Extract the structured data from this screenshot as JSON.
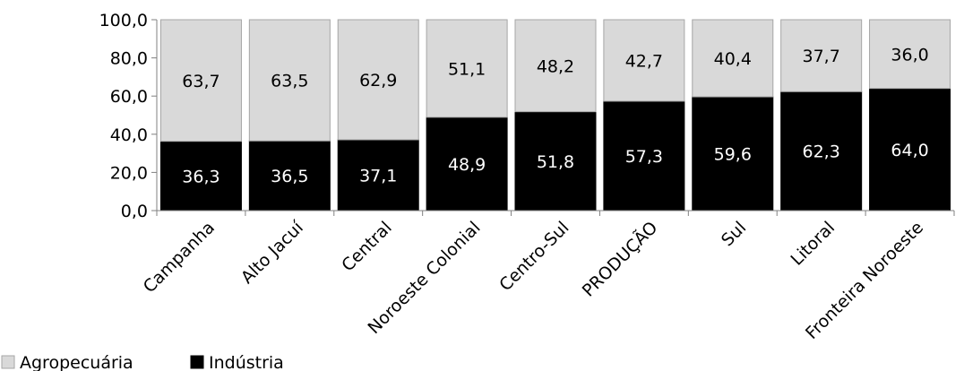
{
  "chart_data": {
    "type": "bar",
    "stacked": true,
    "categories": [
      "Campanha",
      "Alto Jacuí",
      "Central",
      "Noroeste Colonial",
      "Centro-Sul",
      "PRODUÇÃO",
      "Sul",
      "Litoral",
      "Fronteira Noroeste"
    ],
    "series": [
      {
        "name": "Indústria",
        "color": "#000000",
        "values": [
          36.3,
          36.5,
          37.1,
          48.9,
          51.8,
          57.3,
          59.6,
          62.3,
          64.0
        ],
        "labels": [
          "36,3",
          "36,5",
          "37,1",
          "48,9",
          "51,8",
          "57,3",
          "59,6",
          "62,3",
          "64,0"
        ]
      },
      {
        "name": "Agropecuária",
        "color": "#d9d9d9",
        "values": [
          63.7,
          63.5,
          62.9,
          51.1,
          48.2,
          42.7,
          40.4,
          37.7,
          36.0
        ],
        "labels": [
          "63,7",
          "63,5",
          "62,9",
          "51,1",
          "48,2",
          "42,7",
          "40,4",
          "37,7",
          "36,0"
        ]
      }
    ],
    "ylim": [
      0,
      100
    ],
    "yticks": [
      0,
      20,
      40,
      60,
      80,
      100
    ],
    "ytick_labels": [
      "0,0",
      "20,0",
      "40,0",
      "60,0",
      "80,0",
      "100,0"
    ],
    "grid": false,
    "legend": {
      "placement": "bottom-left",
      "items": [
        {
          "label": "Agropecuária",
          "color": "#d9d9d9"
        },
        {
          "label": "Indústria",
          "color": "#000000"
        }
      ]
    },
    "title": "",
    "xlabel": "",
    "ylabel": ""
  }
}
